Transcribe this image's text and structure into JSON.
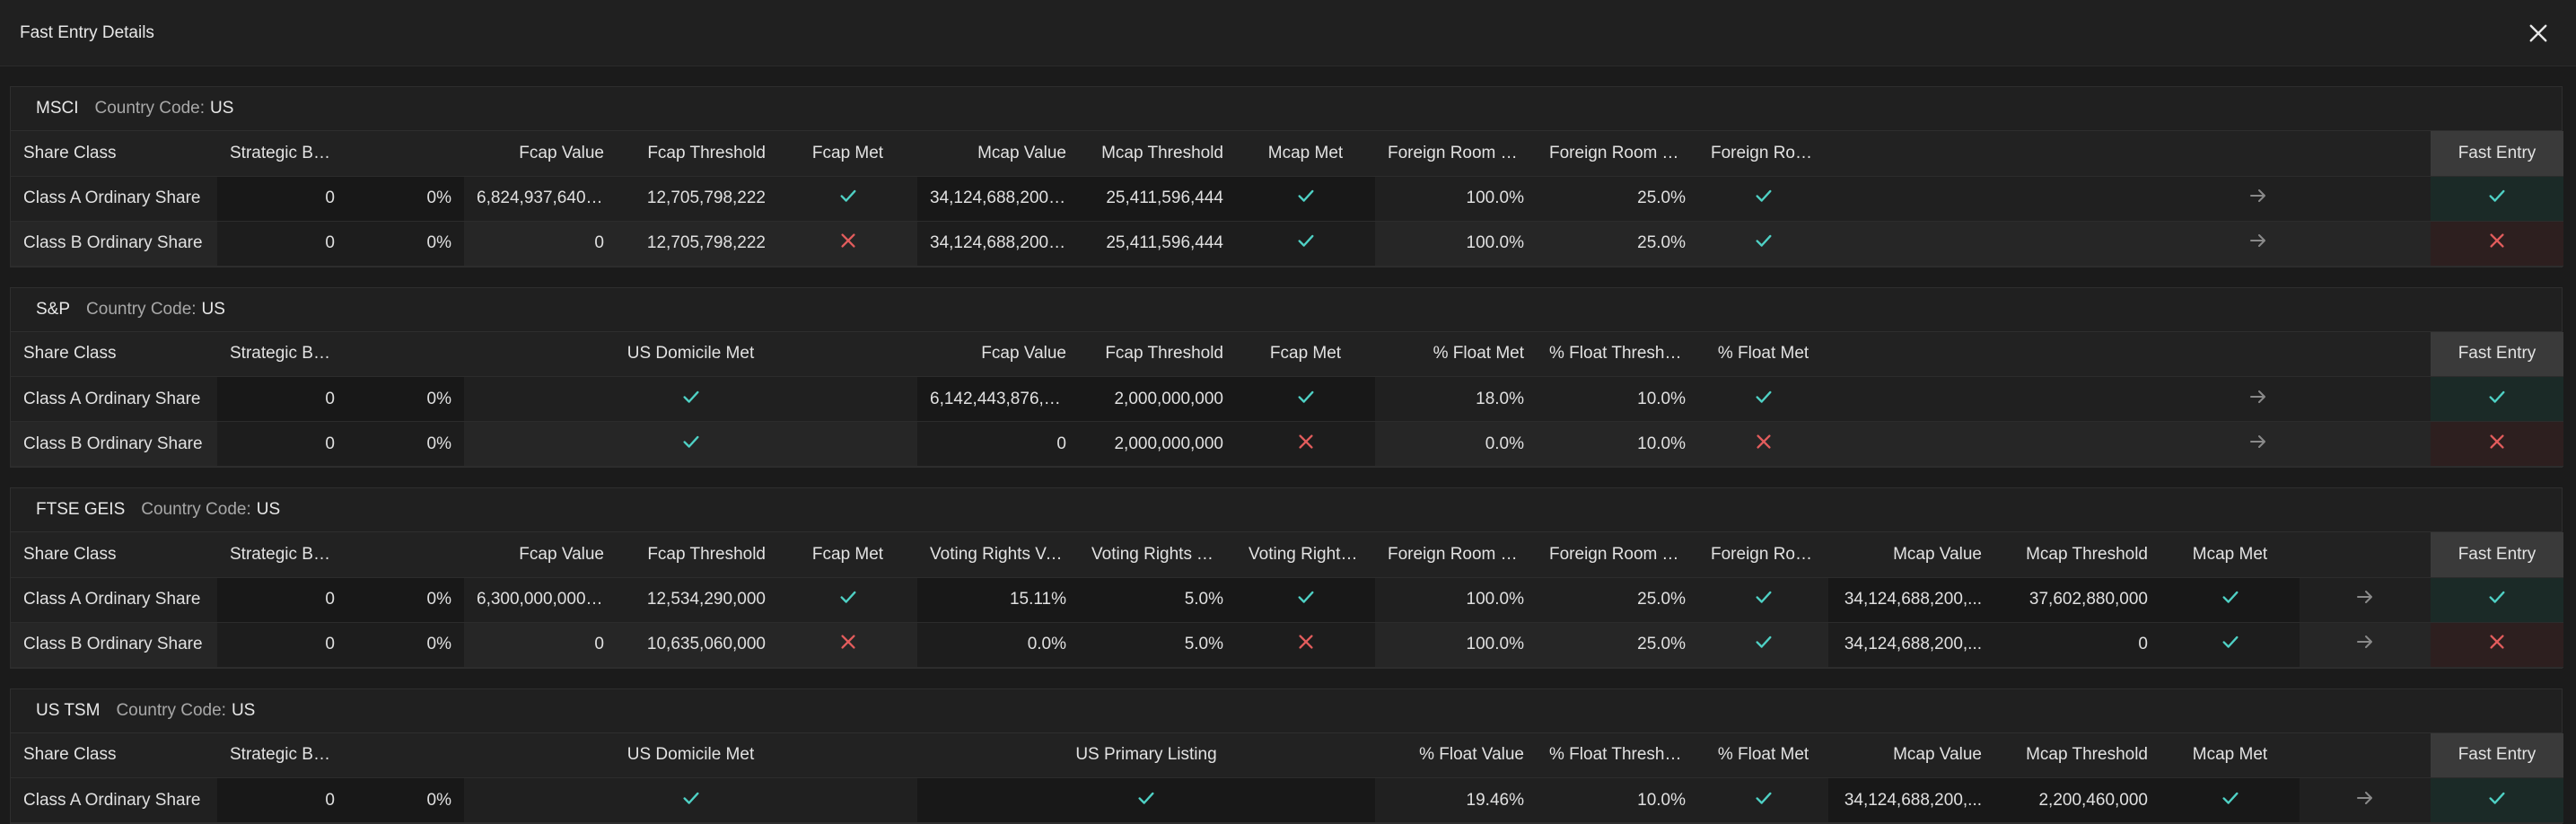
{
  "header": {
    "title": "Fast Entry Details"
  },
  "colors": {
    "check": "#4fd1c5",
    "cross": "#e25c5c",
    "arrow": "#8a8a8a"
  },
  "sections": [
    {
      "name": "MSCI",
      "country_label": "Country Code:",
      "country_value": "US",
      "headers": [
        "Share Class",
        "Strategic Buyers",
        "",
        "Fcap Value",
        "Fcap Threshold",
        "Fcap Met",
        "Mcap Value",
        "Mcap Threshold",
        "Mcap Met",
        "Foreign Room Va...",
        "Foreign Room Th...",
        "Foreign Room...",
        "",
        "Fast Entry"
      ],
      "rows": [
        [
          "Class A Ordinary Share",
          "0",
          "0%",
          "6,824,937,640,0...",
          "12,705,798,222",
          "check",
          "34,124,688,200,...",
          "25,411,596,444",
          "check",
          "100.0%",
          "25.0%",
          "check",
          "arrow",
          "check"
        ],
        [
          "Class B Ordinary Share",
          "0",
          "0%",
          "0",
          "12,705,798,222",
          "cross",
          "34,124,688,200,...",
          "25,411,596,444",
          "check",
          "100.0%",
          "25.0%",
          "check",
          "arrow",
          "cross"
        ]
      ]
    },
    {
      "name": "S&P",
      "country_label": "Country Code:",
      "country_value": "US",
      "headers": [
        "Share Class",
        "Strategic Buyers",
        "",
        "US Domicile Met",
        "",
        "Fcap Value",
        "Fcap Threshold",
        "Fcap Met",
        "% Float Met",
        "% Float Threshold",
        "% Float Met",
        "",
        "Fast Entry"
      ],
      "rows": [
        [
          "Class A Ordinary Share",
          "0",
          "0%",
          "check",
          "",
          "6,142,443,876,0...",
          "2,000,000,000",
          "check",
          "18.0%",
          "10.0%",
          "check",
          "arrow",
          "check"
        ],
        [
          "Class B Ordinary Share",
          "0",
          "0%",
          "check",
          "",
          "0",
          "2,000,000,000",
          "cross",
          "0.0%",
          "10.0%",
          "cross",
          "arrow",
          "cross"
        ]
      ]
    },
    {
      "name": "FTSE GEIS",
      "country_label": "Country Code:",
      "country_value": "US",
      "headers": [
        "Share Class",
        "Strategic Buyers",
        "",
        "Fcap Value",
        "Fcap Threshold",
        "Fcap Met",
        "Voting Rights Val...",
        "Voting Rights Thr...",
        "Voting Rights...",
        "Foreign Room Va...",
        "Foreign Room Th...",
        "Foreign Room...",
        "Mcap Value",
        "Mcap Threshold",
        "Mcap Met",
        "",
        "Fast Entry"
      ],
      "rows": [
        [
          "Class A Ordinary Share",
          "0",
          "0%",
          "6,300,000,000,0...",
          "12,534,290,000",
          "check",
          "15.11%",
          "5.0%",
          "check",
          "100.0%",
          "25.0%",
          "check",
          "34,124,688,200,...",
          "37,602,880,000",
          "check",
          "arrow",
          "check"
        ],
        [
          "Class B Ordinary Share",
          "0",
          "0%",
          "0",
          "10,635,060,000",
          "cross",
          "0.0%",
          "5.0%",
          "cross",
          "100.0%",
          "25.0%",
          "check",
          "34,124,688,200,...",
          "0",
          "check",
          "arrow",
          "cross"
        ]
      ]
    },
    {
      "name": "US TSM",
      "country_label": "Country Code:",
      "country_value": "US",
      "headers": [
        "Share Class",
        "Strategic Buyers",
        "",
        "US Domicile Met",
        "",
        "US Primary Listing",
        "",
        "% Float Value",
        "% Float Threshold",
        "% Float Met",
        "Mcap Value",
        "Mcap Threshold",
        "Mcap Met",
        "",
        "Fast Entry"
      ],
      "rows": [
        [
          "Class A Ordinary Share",
          "0",
          "0%",
          "check",
          "",
          "check",
          "",
          "19.46%",
          "10.0%",
          "check",
          "34,124,688,200,...",
          "2,200,460,000",
          "check",
          "arrow",
          "check"
        ]
      ]
    }
  ]
}
